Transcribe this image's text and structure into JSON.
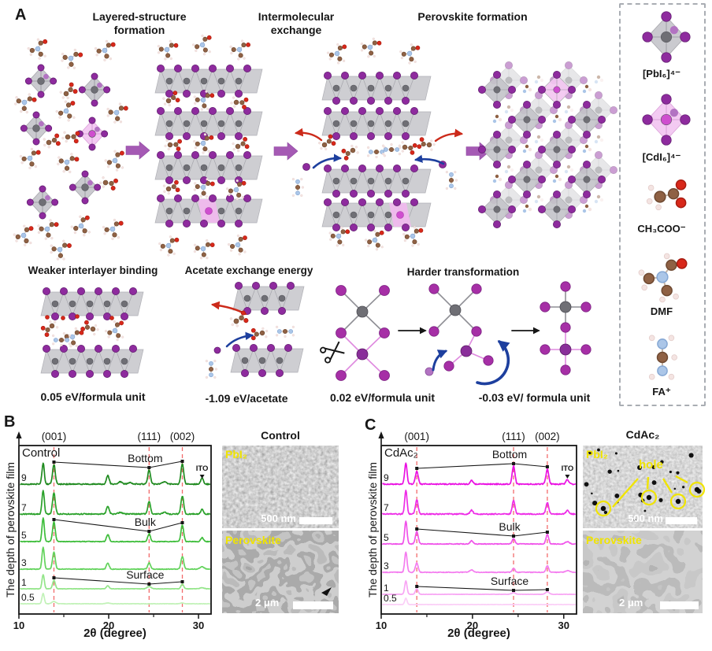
{
  "colors": {
    "purple_ball": "#8e2b9e",
    "purple_ball_stroke": "#641f72",
    "light_purple_ball": "#b273c2",
    "pink_ball": "#cf4ecf",
    "gray_ball": "#6f6f75",
    "octahedron_gray": "#c6c6cb",
    "octahedron_pink": "#f3c6f1",
    "slab_gray": "#c9c9ce",
    "arrow_purple": "#a55ab4",
    "arrow_red": "#cc2a1a",
    "arrow_blue": "#1d3f9e",
    "dashed_guide": "#f26b6b",
    "annotation_black": "#161616",
    "sem_label_yellow": "#f0e400",
    "green_ramp": [
      "#c2f2b8",
      "#93e589",
      "#63d35c",
      "#3dbd3a",
      "#2aa12a",
      "#1f8a1f"
    ],
    "magenta_ramp": [
      "#fbcff7",
      "#f8a6f4",
      "#f47cef",
      "#f053ea",
      "#ee2ce7",
      "#ea10e2"
    ]
  },
  "panel_a": {
    "label": "A",
    "stage_titles": [
      "Layered-structure formation",
      "Intermolecular exchange",
      "Perovskite formation"
    ],
    "bottom_titles": [
      "Weaker interlayer binding",
      "Acetate exchange energy",
      "Harder transformation"
    ],
    "energies": [
      "0.05 eV/formula unit",
      "-1.09 eV/acetate",
      "0.02 eV/formula unit",
      "-0.03 eV/ formula unit"
    ],
    "legend": [
      "[PbI₆]⁴⁻",
      "[CdI₆]⁴⁻",
      "CH₃COO⁻",
      "DMF",
      "FA⁺"
    ]
  },
  "panel_b": {
    "label": "B",
    "sem_title": "Control",
    "sem_labels": [
      "PbI₂",
      "Perovskite"
    ],
    "scale_bars": [
      "500 nm",
      "2 μm"
    ]
  },
  "panel_c": {
    "label": "C",
    "sem_title": "CdAc₂",
    "sem_labels": [
      "PbI₂",
      "Perovskite"
    ],
    "hole_label": "hole",
    "scale_bars": [
      "500 nm",
      "2 μm"
    ]
  },
  "chart_data": [
    {
      "type": "line",
      "title": "Control",
      "xlabel": "2θ (degree)",
      "ylabel": "The depth of perovskite film",
      "xlim": [
        10,
        31.4
      ],
      "xticks": [
        10,
        20,
        30
      ],
      "xticks_minor": [
        15,
        25
      ],
      "grid": false,
      "legend_position": "none",
      "top_axis_peaks": [
        {
          "label": "(001)",
          "two_theta": 13.9
        },
        {
          "label": "(111)",
          "two_theta": 24.5
        },
        {
          "label": "(002)",
          "two_theta": 28.2
        }
      ],
      "ito": {
        "label": "ITO",
        "two_theta": 30.4
      },
      "depth_annotations": [
        {
          "label": "Bottom",
          "series": "9"
        },
        {
          "label": "Bulk",
          "series": "5"
        },
        {
          "label": "Surface",
          "series": "1"
        }
      ],
      "annotation_two_theta": [
        13.9,
        24.5,
        28.2
      ],
      "series": [
        {
          "depth": "9",
          "peaks": [
            [
              12.7,
              27
            ],
            [
              13.9,
              25
            ],
            [
              19.9,
              11
            ],
            [
              21.3,
              3
            ],
            [
              22.4,
              2
            ],
            [
              24.5,
              18
            ],
            [
              26.2,
              3
            ],
            [
              28.2,
              26
            ],
            [
              30.4,
              8
            ]
          ]
        },
        {
          "depth": "7",
          "peaks": [
            [
              12.7,
              30
            ],
            [
              13.9,
              27
            ],
            [
              19.9,
              10
            ],
            [
              21.3,
              2
            ],
            [
              24.5,
              16
            ],
            [
              26.2,
              2
            ],
            [
              28.2,
              23
            ],
            [
              30.4,
              6
            ]
          ]
        },
        {
          "depth": "5",
          "peaks": [
            [
              12.7,
              30
            ],
            [
              13.9,
              25
            ],
            [
              19.9,
              9
            ],
            [
              24.5,
              10
            ],
            [
              28.2,
              21
            ],
            [
              30.4,
              5
            ]
          ]
        },
        {
          "depth": "3",
          "peaks": [
            [
              12.7,
              28
            ],
            [
              13.9,
              22
            ],
            [
              19.9,
              8
            ],
            [
              24.5,
              8
            ],
            [
              28.2,
              16
            ],
            [
              30.4,
              3
            ]
          ]
        },
        {
          "depth": "1",
          "peaks": [
            [
              12.7,
              18
            ],
            [
              13.9,
              11
            ],
            [
              19.9,
              4
            ],
            [
              24.5,
              3
            ],
            [
              28.2,
              6
            ],
            [
              30.4,
              1.5
            ]
          ]
        },
        {
          "depth": "0.5",
          "peaks": [
            [
              12.7,
              13
            ],
            [
              13.9,
              3
            ],
            [
              19.9,
              1
            ],
            [
              28.2,
              1
            ]
          ]
        }
      ]
    },
    {
      "type": "line",
      "title": "CdAc₂",
      "xlabel": "2θ (degree)",
      "ylabel": "The depth of perovskite film",
      "xlim": [
        10,
        31.4
      ],
      "xticks": [
        10,
        20,
        30
      ],
      "xticks_minor": [
        15,
        25
      ],
      "grid": false,
      "legend_position": "none",
      "top_axis_peaks": [
        {
          "label": "(001)",
          "two_theta": 13.9
        },
        {
          "label": "(111)",
          "two_theta": 24.5
        },
        {
          "label": "(002)",
          "two_theta": 28.2
        }
      ],
      "ito": {
        "label": "ITO",
        "two_theta": 30.4
      },
      "depth_annotations": [
        {
          "label": "Bottom",
          "series": "9"
        },
        {
          "label": "Bulk",
          "series": "5"
        },
        {
          "label": "Surface",
          "series": "1"
        }
      ],
      "annotation_two_theta": [
        13.9,
        24.5,
        28.2
      ],
      "series": [
        {
          "depth": "9",
          "peaks": [
            [
              12.7,
              27
            ],
            [
              13.9,
              17
            ],
            [
              19.9,
              5
            ],
            [
              24.5,
              23
            ],
            [
              28.2,
              19
            ],
            [
              30.4,
              6
            ]
          ]
        },
        {
          "depth": "7",
          "peaks": [
            [
              12.7,
              30
            ],
            [
              13.9,
              18
            ],
            [
              19.9,
              5
            ],
            [
              24.5,
              17
            ],
            [
              28.2,
              15
            ],
            [
              30.4,
              5
            ]
          ]
        },
        {
          "depth": "5",
          "peaks": [
            [
              12.7,
              29
            ],
            [
              13.9,
              16
            ],
            [
              19.9,
              4
            ],
            [
              24.5,
              7
            ],
            [
              28.2,
              12
            ],
            [
              30.4,
              3
            ]
          ]
        },
        {
          "depth": "3",
          "peaks": [
            [
              12.7,
              26
            ],
            [
              13.9,
              12
            ],
            [
              19.9,
              3
            ],
            [
              24.5,
              5
            ],
            [
              28.2,
              8
            ],
            [
              30.4,
              2
            ]
          ]
        },
        {
          "depth": "1",
          "peaks": [
            [
              12.7,
              17
            ],
            [
              13.9,
              7
            ],
            [
              24.5,
              2
            ],
            [
              28.2,
              3
            ]
          ]
        },
        {
          "depth": "0.5",
          "peaks": [
            [
              12.7,
              8
            ]
          ]
        }
      ]
    }
  ]
}
